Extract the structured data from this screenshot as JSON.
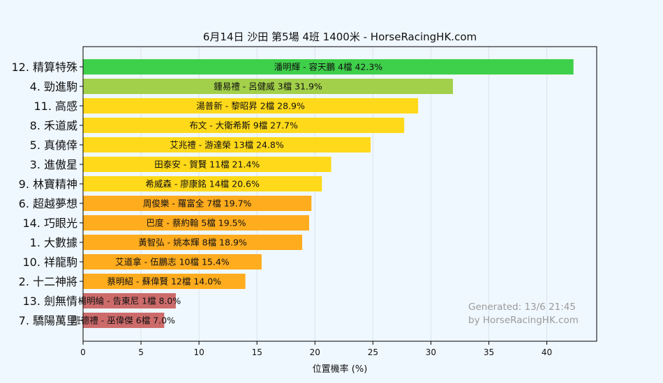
{
  "chart_data": {
    "type": "bar",
    "orientation": "horizontal",
    "title": "6月14日  沙田  第5場  4班  1400米 - HorseRacingHK.com",
    "xlabel": "位置機率 (%)",
    "xlim": [
      0,
      44.3
    ],
    "xticks": [
      "0",
      "5",
      "10",
      "15",
      "20",
      "25",
      "30",
      "35",
      "40"
    ],
    "grid": true,
    "bars": [
      {
        "category": "12. 精算特殊",
        "label": "潘明輝 - 容天鵬 4檔  42.3%",
        "value": 42.3,
        "color": "#3fd04b"
      },
      {
        "category": "4. 勁進駒",
        "label": "鍾易禮 - 呂健威 3檔  31.9%",
        "value": 31.9,
        "color": "#a2d04a"
      },
      {
        "category": "11. 高感",
        "label": "湯普新 - 黎昭昇 2檔  28.9%",
        "value": 28.9,
        "color": "#ffd91a"
      },
      {
        "category": "8. 禾道威",
        "label": "布文 - 大衛希斯 9檔  27.7%",
        "value": 27.7,
        "color": "#ffd91a"
      },
      {
        "category": "5. 真僥倖",
        "label": "艾兆禮 - 游達榮 13檔  24.8%",
        "value": 24.8,
        "color": "#ffd91a"
      },
      {
        "category": "3. 進傲星",
        "label": "田泰安 - 賀賢 11檔  21.4%",
        "value": 21.4,
        "color": "#ffd91a"
      },
      {
        "category": "9. 林寶精神",
        "label": "希威森 - 廖康銘 14檔  20.6%",
        "value": 20.6,
        "color": "#ffd91a"
      },
      {
        "category": "6. 超越夢想",
        "label": "周俊樂 - 羅富全 7檔  19.7%",
        "value": 19.7,
        "color": "#ffac1e"
      },
      {
        "category": "14. 巧眼光",
        "label": "巴度 - 蔡約翰 5檔  19.5%",
        "value": 19.5,
        "color": "#ffac1e"
      },
      {
        "category": "1. 大數據",
        "label": "黃智弘 - 姚本輝 8檔  18.9%",
        "value": 18.9,
        "color": "#ffac1e"
      },
      {
        "category": "10. 祥龍駒",
        "label": "艾道拿 - 伍鵬志 10檔  15.4%",
        "value": 15.4,
        "color": "#ffac1e"
      },
      {
        "category": "2. 十二神將",
        "label": "蔡明紹 - 蘇偉賢 12檔  14.0%",
        "value": 14.0,
        "color": "#ffac1e"
      },
      {
        "category": "13. 劍無情",
        "label": "楊明綸 - 告東尼 1檔  8.0%",
        "value": 8.0,
        "color": "#cd6b6b"
      },
      {
        "category": "7. 驕陽萬里",
        "label": "班德禮 - 巫偉傑 6檔  7.0%",
        "value": 7.0,
        "color": "#cd6b6b"
      }
    ],
    "annotation": [
      "Generated: 13/6 21:45",
      "by HorseRacingHK.com"
    ]
  },
  "colors": {
    "background": "#f0f8ff",
    "plot_background": "#f0f8ff",
    "grid": "#d9e2ec",
    "axis": "#000000",
    "watermark": "#9a9a9a"
  }
}
